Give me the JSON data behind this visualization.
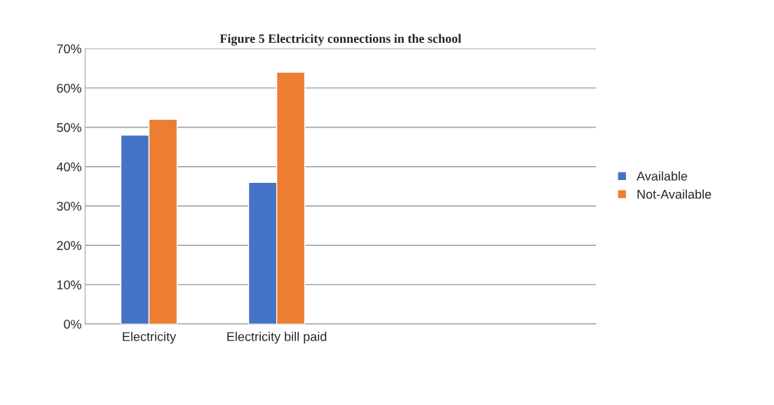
{
  "chart_data": {
    "type": "bar",
    "title": "Figure 5 Electricity connections in the school",
    "categories": [
      "Electricity",
      "Electricity bill paid",
      null,
      null
    ],
    "series": [
      {
        "name": "Available",
        "color": "#4472c4",
        "values": [
          48,
          36,
          null,
          null
        ]
      },
      {
        "name": "Not-Available",
        "color": "#ed7d31",
        "values": [
          52,
          64,
          null,
          null
        ]
      }
    ],
    "ylim": [
      0,
      70
    ],
    "yticks": [
      {
        "value": 0,
        "label": "0%"
      },
      {
        "value": 10,
        "label": "10%"
      },
      {
        "value": 20,
        "label": "20%"
      },
      {
        "value": 30,
        "label": "30%"
      },
      {
        "value": 40,
        "label": "40%"
      },
      {
        "value": 50,
        "label": "50%"
      },
      {
        "value": 60,
        "label": "60%"
      },
      {
        "value": 70,
        "label": "70%"
      }
    ],
    "grid": "y",
    "legend": "right"
  }
}
